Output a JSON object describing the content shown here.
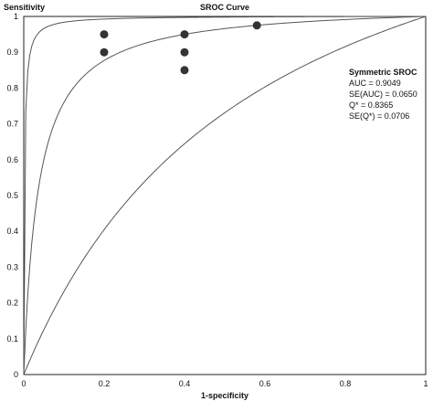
{
  "chart_data": {
    "type": "line",
    "title": "SROC Curve",
    "ylabel": "Sensitivity",
    "xlabel": "1-specificity",
    "xlim": [
      0,
      1
    ],
    "ylim": [
      0,
      1
    ],
    "x_ticks": [
      "0",
      "0.2",
      "0.4",
      "0.6",
      "0.8",
      "1"
    ],
    "y_ticks": [
      "0",
      "0.1",
      "0.2",
      "0.3",
      "0.4",
      "0.5",
      "0.6",
      "0.7",
      "0.8",
      "0.9",
      "1"
    ],
    "grid": false,
    "legend": null,
    "points": [
      {
        "x": 0.2,
        "y": 0.95
      },
      {
        "x": 0.2,
        "y": 0.9
      },
      {
        "x": 0.4,
        "y": 0.95
      },
      {
        "x": 0.4,
        "y": 0.9
      },
      {
        "x": 0.4,
        "y": 0.85
      },
      {
        "x": 0.58,
        "y": 0.975
      }
    ],
    "curves": [
      {
        "description": "reference diagonal-like curve",
        "shape": "low"
      },
      {
        "description": "symmetric SROC",
        "shape": "middle"
      },
      {
        "description": "upper bound curve",
        "shape": "high"
      }
    ],
    "annotation": {
      "title": "Symmetric SROC",
      "lines": [
        "AUC = 0.9049",
        "SE(AUC) = 0.0650",
        "Q* = 0.8365",
        "SE(Q*) = 0.0706"
      ]
    }
  }
}
